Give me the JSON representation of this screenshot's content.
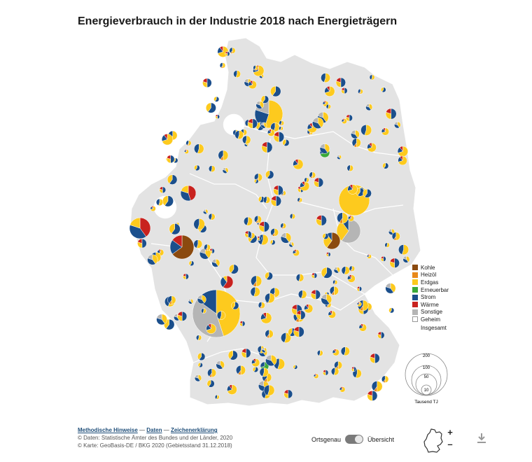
{
  "title": "Energieverbrauch in der Industrie 2018 nach Energieträgern",
  "legend": {
    "items": [
      {
        "label": "Kohle",
        "color": "#8b4a0f"
      },
      {
        "label": "Heizöl",
        "color": "#e8891a"
      },
      {
        "label": "Erdgas",
        "color": "#fdca1e"
      },
      {
        "label": "Erneuerbar",
        "color": "#3aa93a"
      },
      {
        "label": "Strom",
        "color": "#1b4f8c"
      },
      {
        "label": "Wärme",
        "color": "#c8221f"
      },
      {
        "label": "Sonstige",
        "color": "#b5b5b5"
      },
      {
        "label": "Geheim",
        "color": "#ffffff"
      }
    ],
    "total_label": "Insgesamt"
  },
  "size_legend": {
    "values": [
      "200",
      "100",
      "50",
      "10"
    ],
    "unit": "Tausend TJ"
  },
  "footer": {
    "link_methods": "Methodische Hinweise",
    "link_data": "Daten",
    "link_legend": "Zeichenerklärung",
    "separator": "—",
    "source_data": "© Daten: Statistische Ämter des Bundes und der Länder, 2020",
    "source_map": "© Karte: GeoBasis-DE / BKG 2020 (Gebietsstand 31.12.2018)"
  },
  "toggle": {
    "left_label": "Ortsgenau",
    "right_label": "Übersicht"
  },
  "controls": {
    "zoom_in": "+",
    "zoom_out": "–"
  },
  "colors": {
    "land": "#e3e3e3",
    "border": "#ffffff",
    "background": "#ffffff"
  },
  "map": {
    "symbols": "proportional pie charts per district",
    "largest_site_energy_mix": [
      "Erdgas",
      "Sonstige",
      "Strom"
    ]
  }
}
